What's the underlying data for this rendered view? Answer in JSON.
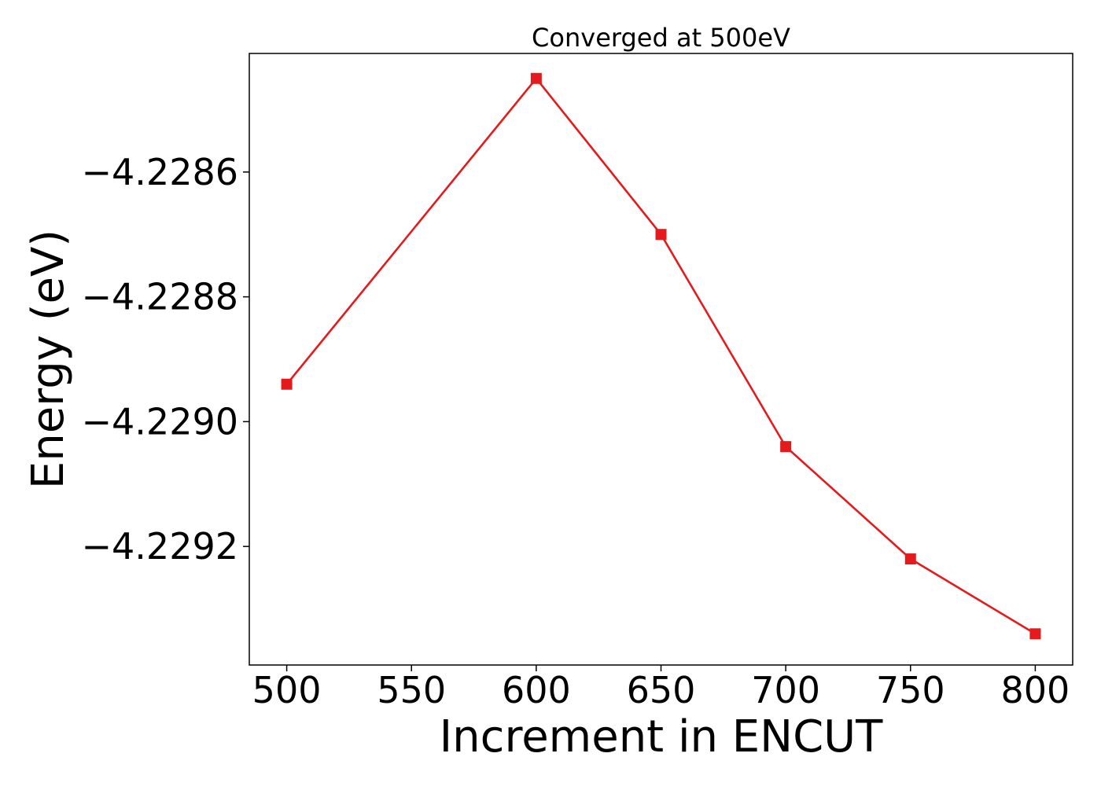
{
  "chart_data": {
    "type": "line",
    "title": "Converged at 500eV",
    "xlabel": "Increment in ENCUT",
    "ylabel": "Energy (eV)",
    "x": [
      500,
      600,
      650,
      700,
      750,
      800
    ],
    "series": [
      {
        "values": [
          -4.22894,
          -4.22845,
          -4.2287,
          -4.22904,
          -4.22922,
          -4.22934
        ],
        "color": "#e41a1c",
        "marker": "square"
      }
    ],
    "xlim": [
      485,
      815
    ],
    "ylim": [
      -4.22939,
      -4.22841
    ],
    "xticks": [
      500,
      550,
      600,
      650,
      700,
      750,
      800
    ],
    "xtick_labels": [
      "500",
      "550",
      "600",
      "650",
      "700",
      "750",
      "800"
    ],
    "yticks": [
      -4.2286,
      -4.2288,
      -4.229,
      -4.2292
    ],
    "ytick_labels": [
      "−4.2286",
      "−4.2288",
      "−4.2290",
      "−4.2292"
    ],
    "grid": false,
    "legend": "none"
  }
}
